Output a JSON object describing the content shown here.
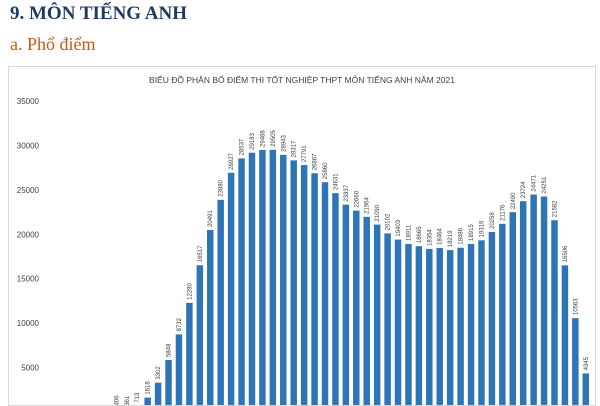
{
  "section_title": "9. MÔN TIẾNG ANH",
  "subsection_title": "a. Phổ điểm",
  "chart_data": {
    "type": "bar",
    "title": "BIỂU ĐỒ PHÂN BỐ ĐIỂM THI TỐT NGHIỆP THPT MÔN TIẾNG ANH NĂM 2021",
    "bar_color": "#2e75b6",
    "ylim": [
      0,
      35000
    ],
    "yticks": [
      5000,
      10000,
      15000,
      20000,
      25000,
      30000,
      35000
    ],
    "grid": false,
    "values": [
      0,
      0,
      20,
      70,
      150,
      406,
      361,
      713,
      1618,
      3302,
      5848,
      8732,
      12280,
      16517,
      20491,
      23880,
      26927,
      28537,
      29183,
      29488,
      29505,
      28943,
      28317,
      27791,
      26867,
      25860,
      24631,
      23337,
      22660,
      21964,
      21090,
      20102,
      19403,
      18911,
      18665,
      18354,
      18464,
      18219,
      18486,
      18915,
      19319,
      20258,
      21176,
      22490,
      23724,
      24471,
      24251,
      21582,
      16506,
      10563,
      4345
    ],
    "labels": [
      "",
      "",
      "",
      "",
      "",
      "406",
      "361",
      "713",
      "1618",
      "3302",
      "5848",
      "8732",
      "12280",
      "16517",
      "20491",
      "23880",
      "26927",
      "28537",
      "29183",
      "29488",
      "29505",
      "28943",
      "28317",
      "27791",
      "26867",
      "25860",
      "24631",
      "23337",
      "22660",
      "21964",
      "21090",
      "20102",
      "19403",
      "18911",
      "18665",
      "18354",
      "18464",
      "18219",
      "18486",
      "18915",
      "19319",
      "20258",
      "21176",
      "22490",
      "23724",
      "24471",
      "24251",
      "21582",
      "16506",
      "10563",
      "4345"
    ]
  }
}
